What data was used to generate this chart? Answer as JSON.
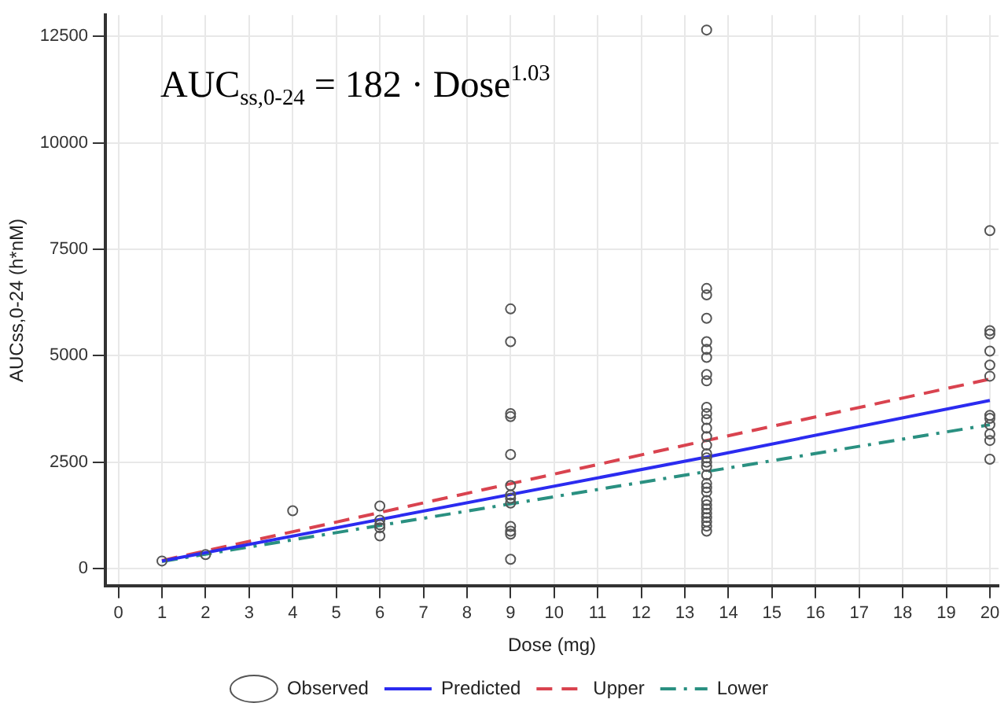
{
  "chart_data": {
    "type": "scatter",
    "xlabel": "Dose (mg)",
    "ylabel": "AUCss,0-24 (h*nM)",
    "xlim": [
      -0.3,
      20.2
    ],
    "xticks": [
      0,
      1,
      2,
      3,
      4,
      5,
      6,
      7,
      8,
      9,
      10,
      11,
      12,
      13,
      14,
      15,
      16,
      17,
      18,
      19,
      20
    ],
    "ylim": [
      -400,
      13000
    ],
    "yticks": [
      0,
      2500,
      5000,
      7500,
      10000,
      12500
    ],
    "grid": true,
    "legend": "bottom",
    "annotations": [
      {
        "text": "AUC$_{ss,0-24}$ = 182 · Dose$^{1.03}$"
      }
    ],
    "series": [
      {
        "name": "Observed",
        "color": "#555555",
        "marker": "circle",
        "x": [
          1,
          2,
          4,
          6,
          6,
          6,
          6,
          6,
          9,
          9,
          9,
          9,
          9,
          9,
          9,
          9,
          9,
          9,
          9,
          9,
          9,
          13.5,
          13.5,
          13.5,
          13.5,
          13.5,
          13.5,
          13.5,
          13.5,
          13.5,
          13.5,
          13.5,
          13.5,
          13.5,
          13.5,
          13.5,
          13.5,
          13.5,
          13.5,
          13.5,
          13.5,
          13.5,
          13.5,
          13.5,
          13.5,
          13.5,
          13.5,
          13.5,
          13.5,
          13.5,
          13.5,
          13.5,
          20,
          20,
          20,
          20,
          20,
          20,
          20,
          20,
          20,
          20,
          20,
          20
        ],
        "values": [
          180,
          330,
          1360,
          1470,
          1140,
          1030,
          960,
          770,
          6100,
          5330,
          3640,
          3570,
          2680,
          1950,
          1730,
          1650,
          1540,
          990,
          880,
          810,
          220,
          12650,
          6580,
          6430,
          5880,
          5330,
          5150,
          4960,
          4560,
          4410,
          3790,
          3640,
          3500,
          3300,
          3100,
          2900,
          2700,
          2600,
          2500,
          2400,
          2200,
          2000,
          1900,
          1800,
          1600,
          1500,
          1400,
          1300,
          1200,
          1100,
          1000,
          880,
          7940,
          5590,
          5510,
          5110,
          4780,
          4520,
          3600,
          3530,
          3380,
          3160,
          3010,
          2570
        ]
      },
      {
        "name": "Predicted",
        "type": "line",
        "color": "#2b2bf0",
        "marker": "none",
        "line_style": "solid",
        "x": [
          1,
          13.5,
          20
        ],
        "values": [
          180,
          2620,
          3950
        ]
      },
      {
        "name": "Upper",
        "type": "line",
        "color": "#d9434f",
        "marker": "none",
        "line_style": "dashed",
        "x": [
          1,
          13.5,
          20
        ],
        "values": [
          190,
          3010,
          4450
        ]
      },
      {
        "name": "Lower",
        "type": "line",
        "color": "#2a9081",
        "marker": "none",
        "line_style": "dashdot",
        "x": [
          1,
          13.5,
          20
        ],
        "values": [
          170,
          2280,
          3380
        ]
      }
    ]
  }
}
